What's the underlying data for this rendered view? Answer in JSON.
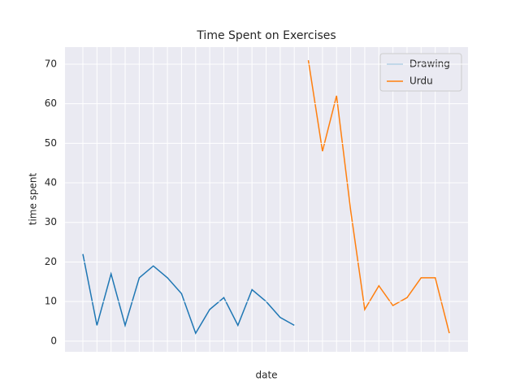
{
  "chart_data": {
    "type": "line",
    "title": "Time Spent on Exercises",
    "xlabel": "date",
    "ylabel": "time spent",
    "categories": [
      null,
      null,
      null,
      null,
      null,
      null,
      null,
      null,
      null,
      null,
      null,
      null,
      null,
      null,
      null,
      null,
      null,
      null,
      null,
      null,
      null,
      null,
      null,
      null,
      null,
      null,
      null
    ],
    "series": [
      {
        "name": "Drawing",
        "color": "#1f77b4",
        "values": [
          22,
          4,
          17,
          4,
          16,
          19,
          16,
          12,
          2,
          8,
          11,
          4,
          13,
          10,
          6,
          4,
          null,
          null,
          null,
          null,
          null,
          null,
          null,
          null,
          null,
          null,
          null
        ]
      },
      {
        "name": "Urdu",
        "color": "#ff7f0e",
        "values": [
          null,
          null,
          null,
          null,
          null,
          null,
          null,
          null,
          null,
          null,
          null,
          null,
          null,
          null,
          null,
          null,
          71,
          48,
          62,
          33,
          8,
          14,
          9,
          11,
          16,
          16,
          2
        ]
      }
    ],
    "ylim": [
      -2.7,
      74.3
    ],
    "yticks": [
      0,
      10,
      20,
      30,
      40,
      50,
      60,
      70
    ],
    "grid": true,
    "legend": "upper right"
  }
}
